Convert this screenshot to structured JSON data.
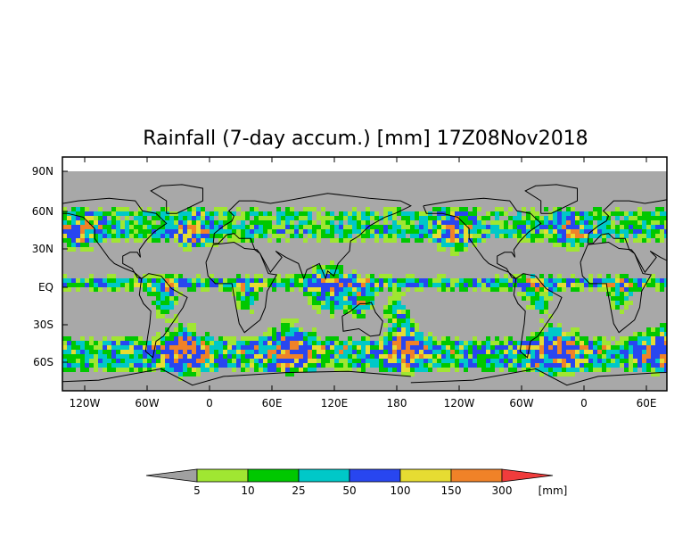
{
  "title": "Rainfall (7-day accum.) [mm] 17Z08Nov2018",
  "map": {
    "x_ticks": [
      "120W",
      "60W",
      "0",
      "60E",
      "120E",
      "180",
      "120W",
      "60W",
      "0",
      "60E"
    ],
    "y_ticks": [
      "90N",
      "60N",
      "30N",
      "EQ",
      "30S",
      "60S"
    ],
    "background_color": "#a8a8a8"
  },
  "colorbar": {
    "labels": [
      "5",
      "10",
      "25",
      "50",
      "100",
      "150",
      "300"
    ],
    "unit": "[mm]",
    "colors": [
      "#a0a0a0",
      "#a0e632",
      "#00c800",
      "#00c8c8",
      "#2846f0",
      "#e6dc32",
      "#f08228",
      "#f03c3c"
    ]
  }
}
